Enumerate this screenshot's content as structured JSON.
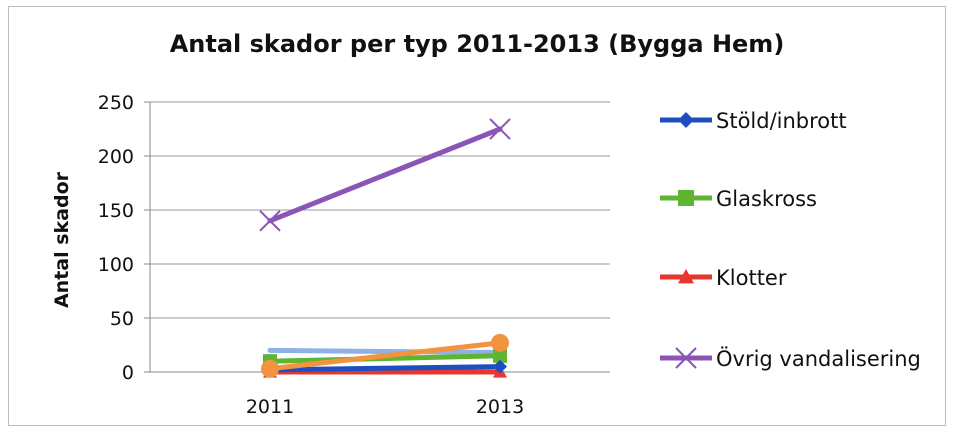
{
  "chart_data": {
    "type": "line",
    "title": "Antal skador per typ 2011-2013  (Bygga Hem)",
    "ylabel": "Antal skador",
    "xlabel": "",
    "categories": [
      "2011",
      "2013"
    ],
    "ylim": [
      0,
      250
    ],
    "yticks": [
      0,
      50,
      100,
      150,
      200,
      250
    ],
    "grid": true,
    "legend_position": "right",
    "series": [
      {
        "name": "Stöld/inbrott",
        "values": [
          2,
          5
        ],
        "color": "#1f4fbf",
        "marker": "diamond",
        "in_legend": true
      },
      {
        "name": "Glaskross",
        "values": [
          10,
          15
        ],
        "color": "#5fb531",
        "marker": "square",
        "in_legend": true
      },
      {
        "name": "Klotter",
        "values": [
          0,
          0
        ],
        "color": "#e8352d",
        "marker": "triangle",
        "in_legend": true
      },
      {
        "name": "Övrig vandalisering",
        "values": [
          140,
          225
        ],
        "color": "#8b54b5",
        "marker": "x",
        "in_legend": true
      },
      {
        "values": [
          20,
          18
        ],
        "color": "#8fb1e3",
        "marker": "none",
        "in_legend": false
      },
      {
        "values": [
          3,
          27
        ],
        "color": "#f29340",
        "marker": "circle",
        "in_legend": false
      }
    ]
  }
}
